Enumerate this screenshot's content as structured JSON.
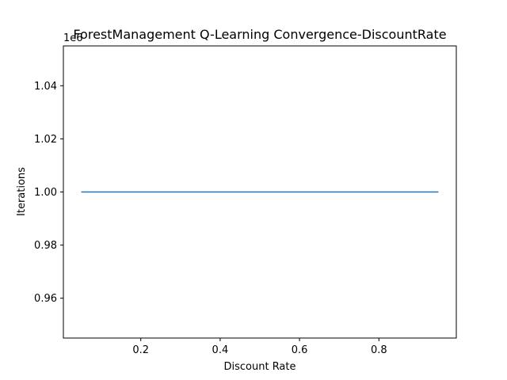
{
  "chart_data": {
    "type": "line",
    "title": "ForestManagement Q-Learning Convergence-DiscountRate",
    "xlabel": "Discount Rate",
    "ylabel": "Iterations",
    "y_offset_label": "1e6",
    "xlim": [
      0.005,
      0.995
    ],
    "ylim": [
      0.945,
      1.055
    ],
    "x_ticks": [
      0.2,
      0.4,
      0.6,
      0.8
    ],
    "x_tick_labels": [
      "0.2",
      "0.4",
      "0.6",
      "0.8"
    ],
    "y_ticks": [
      0.96,
      0.98,
      1.0,
      1.02,
      1.04
    ],
    "y_tick_labels": [
      "0.96",
      "0.98",
      "1.00",
      "1.02",
      "1.04"
    ],
    "grid": false,
    "series": [
      {
        "color": "#1f77b4",
        "x": [
          0.05,
          0.15,
          0.25,
          0.35,
          0.45,
          0.55,
          0.65,
          0.75,
          0.85,
          0.95
        ],
        "y": [
          1.0,
          1.0,
          1.0,
          1.0,
          1.0,
          1.0,
          1.0,
          1.0,
          1.0,
          1.0
        ]
      }
    ]
  }
}
